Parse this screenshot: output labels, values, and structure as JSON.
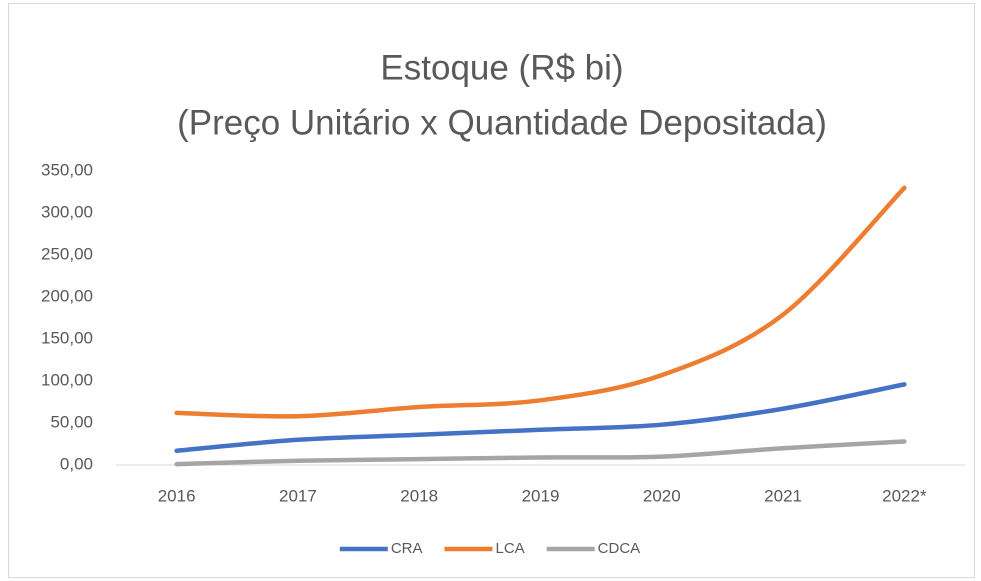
{
  "chart_data": {
    "type": "line",
    "title": [
      "Estoque (R$ bi)",
      "(Preço Unitário x Quantidade Depositada)"
    ],
    "categories": [
      "2016",
      "2017",
      "2018",
      "2019",
      "2020",
      "2021",
      "2022*"
    ],
    "series": [
      {
        "name": "CRA",
        "color": "#4472c4",
        "values": [
          17,
          30,
          36,
          42,
          48,
          67,
          96
        ]
      },
      {
        "name": "LCA",
        "color": "#ed7d31",
        "values": [
          62,
          58,
          69,
          77,
          107,
          179,
          330
        ]
      },
      {
        "name": "CDCA",
        "color": "#a5a5a5",
        "values": [
          1,
          5,
          7,
          9,
          10,
          20,
          28
        ]
      }
    ],
    "ylim": [
      0,
      350
    ],
    "yticks": [
      {
        "value": 0,
        "label": "0,00"
      },
      {
        "value": 50,
        "label": "50,00"
      },
      {
        "value": 100,
        "label": "100,00"
      },
      {
        "value": 150,
        "label": "150,00"
      },
      {
        "value": 200,
        "label": "200,00"
      },
      {
        "value": 250,
        "label": "250,00"
      },
      {
        "value": 300,
        "label": "300,00"
      },
      {
        "value": 350,
        "label": "350,00"
      }
    ],
    "grid": false,
    "legend": "bottom"
  }
}
